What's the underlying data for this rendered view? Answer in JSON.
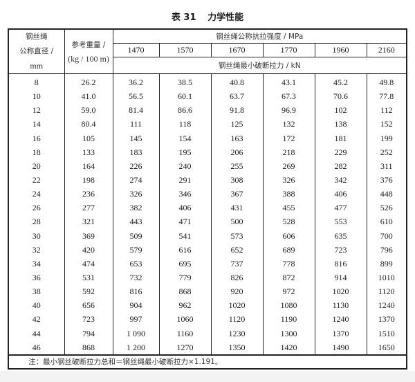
{
  "title": {
    "number": "表 31",
    "text": "力学性能"
  },
  "headers": {
    "diameter": [
      "钢丝绳",
      "公称直径 /",
      "mm"
    ],
    "weight": [
      "参考重量 /",
      "(kg / 100 m)"
    ],
    "strength_group": "钢丝绳公称抗拉强度 / MPa",
    "strengths": [
      "1470",
      "1570",
      "1670",
      "1770",
      "1960",
      "2160"
    ],
    "force_group": "钢丝绳最小破断拉力 / kN"
  },
  "rows": [
    [
      "8",
      "26.2",
      "36.2",
      "38.5",
      "40.8",
      "43.1",
      "45.2",
      "49.8"
    ],
    [
      "10",
      "41.0",
      "56.5",
      "60.1",
      "63.7",
      "67.3",
      "70.6",
      "77.8"
    ],
    [
      "12",
      "59.0",
      "81.4",
      "86.6",
      "91.8",
      "96.9",
      "102",
      "112"
    ],
    [
      "14",
      "80.4",
      "111",
      "118",
      "125",
      "132",
      "138",
      "152"
    ],
    [
      "16",
      "105",
      "145",
      "154",
      "163",
      "172",
      "181",
      "199"
    ],
    [
      "18",
      "133",
      "183",
      "195",
      "206",
      "218",
      "229",
      "252"
    ],
    [
      "20",
      "164",
      "226",
      "240",
      "255",
      "269",
      "282",
      "311"
    ],
    [
      "22",
      "198",
      "274",
      "291",
      "308",
      "326",
      "342",
      "376"
    ],
    [
      "24",
      "236",
      "326",
      "346",
      "367",
      "388",
      "406",
      "448"
    ],
    [
      "26",
      "277",
      "382",
      "406",
      "431",
      "455",
      "477",
      "526"
    ],
    [
      "28",
      "321",
      "443",
      "471",
      "500",
      "528",
      "553",
      "610"
    ],
    [
      "30",
      "369",
      "509",
      "541",
      "573",
      "606",
      "635",
      "700"
    ],
    [
      "32",
      "420",
      "579",
      "616",
      "652",
      "689",
      "723",
      "796"
    ],
    [
      "34",
      "474",
      "653",
      "695",
      "737",
      "778",
      "816",
      "899"
    ],
    [
      "36",
      "531",
      "732",
      "779",
      "826",
      "872",
      "914",
      "1010"
    ],
    [
      "38",
      "592",
      "816",
      "868",
      "920",
      "972",
      "1020",
      "1120"
    ],
    [
      "40",
      "656",
      "904",
      "962",
      "1020",
      "1080",
      "1130",
      "1240"
    ],
    [
      "42",
      "723",
      "997",
      "1060",
      "1120",
      "1190",
      "1240",
      "1370"
    ],
    [
      "44",
      "794",
      "1 090",
      "1160",
      "1230",
      "1300",
      "1370",
      "1510"
    ],
    [
      "46",
      "868",
      "1 200",
      "1270",
      "1350",
      "1420",
      "1490",
      "1650"
    ]
  ],
  "note": "注：最小钢丝破断拉力总和＝钢丝绳最小破断拉力×1.191。"
}
